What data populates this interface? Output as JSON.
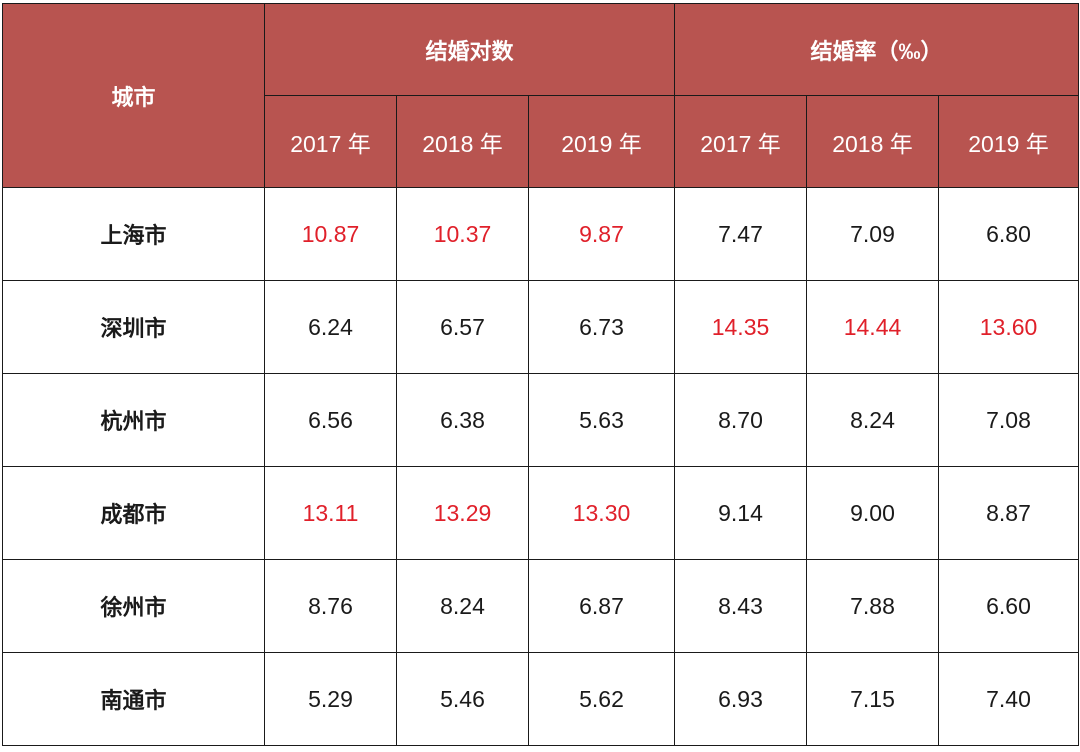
{
  "table": {
    "city_header": "城市",
    "groups": [
      {
        "label": "结婚对数"
      },
      {
        "label": "结婚率（‰）"
      }
    ],
    "years": [
      "2017 年",
      "2018 年",
      "2019 年",
      "2017 年",
      "2018 年",
      "2019 年"
    ],
    "highlight_color": "#e0202a",
    "header_color": "#b85450",
    "rows": [
      {
        "city": "上海市",
        "values": [
          "10.87",
          "10.37",
          "9.87",
          "7.47",
          "7.09",
          "6.80"
        ],
        "highlight": [
          true,
          true,
          true,
          false,
          false,
          false
        ]
      },
      {
        "city": "深圳市",
        "values": [
          "6.24",
          "6.57",
          "6.73",
          "14.35",
          "14.44",
          "13.60"
        ],
        "highlight": [
          false,
          false,
          false,
          true,
          true,
          true
        ]
      },
      {
        "city": "杭州市",
        "values": [
          "6.56",
          "6.38",
          "5.63",
          "8.70",
          "8.24",
          "7.08"
        ],
        "highlight": [
          false,
          false,
          false,
          false,
          false,
          false
        ]
      },
      {
        "city": "成都市",
        "values": [
          "13.11",
          "13.29",
          "13.30",
          "9.14",
          "9.00",
          "8.87"
        ],
        "highlight": [
          true,
          true,
          true,
          false,
          false,
          false
        ]
      },
      {
        "city": "徐州市",
        "values": [
          "8.76",
          "8.24",
          "6.87",
          "8.43",
          "7.88",
          "6.60"
        ],
        "highlight": [
          false,
          false,
          false,
          false,
          false,
          false
        ]
      },
      {
        "city": "南通市",
        "values": [
          "5.29",
          "5.46",
          "5.62",
          "6.93",
          "7.15",
          "7.40"
        ],
        "highlight": [
          false,
          false,
          false,
          false,
          false,
          false
        ]
      }
    ]
  }
}
